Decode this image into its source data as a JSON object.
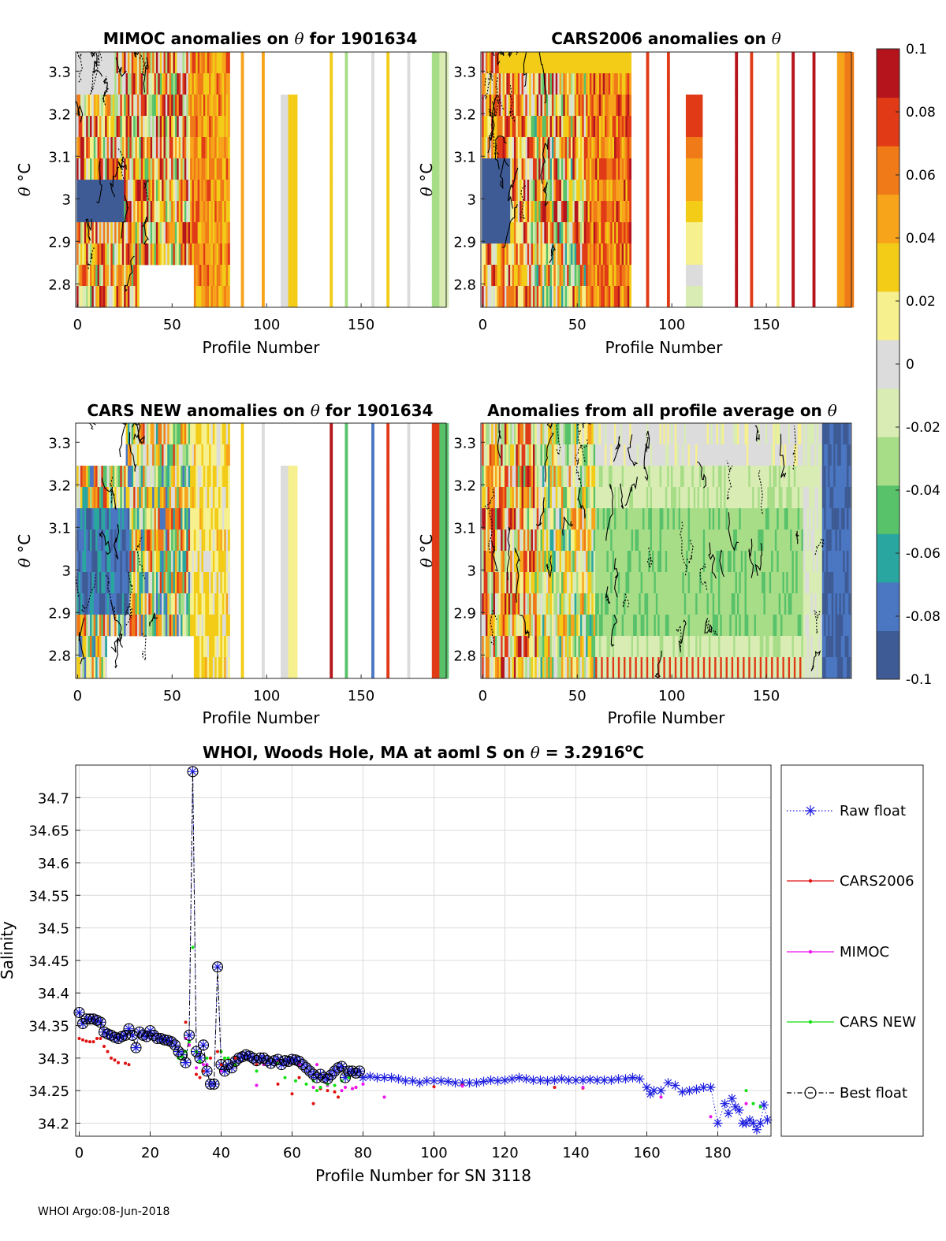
{
  "footer": "WHOI Argo:08-Jun-2018",
  "colorbar": {
    "ticks": [
      0.1,
      0.08,
      0.06,
      0.04,
      0.02,
      0,
      -0.02,
      -0.04,
      -0.06,
      -0.08,
      -0.1
    ],
    "tick_labels": [
      "0.1",
      "0.08",
      "0.06",
      "0.04",
      "0.02",
      "0",
      "-0.02",
      "-0.04",
      "-0.06",
      "-0.08",
      "-0.1"
    ],
    "range": [
      -0.1,
      0.1
    ],
    "colors": [
      "#3e5b95",
      "#4a76c2",
      "#2aa6a0",
      "#57c26a",
      "#a8dd88",
      "#d8ecb4",
      "#dcdcdc",
      "#f6f08e",
      "#f2cc16",
      "#f7a41b",
      "#f07a17",
      "#e03a16",
      "#b5141c"
    ]
  },
  "chart_data": [
    {
      "type": "heatmap",
      "title_text": "MIMOC anomalies on ",
      "title_theta": "θ",
      "title_rest": "  for 1901634",
      "ylabel_theta": "θ",
      "ylabel_unit": "°C",
      "xlabel": "Profile Number",
      "xlim": [
        -1,
        195
      ],
      "ylim": [
        2.745,
        3.345
      ],
      "xticks": [
        0,
        50,
        100,
        150
      ],
      "yticks": [
        2.8,
        2.9,
        3,
        3.1,
        3.2,
        3.3
      ],
      "ytick_labels": [
        "2.8",
        "2.9",
        "3",
        "3.1",
        "3.2",
        "3.3"
      ],
      "pattern": "mimoc"
    },
    {
      "type": "heatmap",
      "title_text": "CARS2006 anomalies on ",
      "title_theta": "θ",
      "title_rest": "",
      "ylabel_theta": "θ",
      "ylabel_unit": "°C",
      "xlabel": "Profile Number",
      "xlim": [
        -1,
        195
      ],
      "ylim": [
        2.745,
        3.345
      ],
      "xticks": [
        0,
        50,
        100,
        150
      ],
      "yticks": [
        2.8,
        2.9,
        3,
        3.1,
        3.2,
        3.3
      ],
      "ytick_labels": [
        "2.8",
        "2.9",
        "3",
        "3.1",
        "3.2",
        "3.3"
      ],
      "pattern": "cars2006"
    },
    {
      "type": "heatmap",
      "title_text": "CARS NEW anomalies on ",
      "title_theta": "θ",
      "title_rest": " for 1901634",
      "ylabel_theta": "θ",
      "ylabel_unit": "°C",
      "xlabel": "Profile Number",
      "xlim": [
        -1,
        195
      ],
      "ylim": [
        2.745,
        3.345
      ],
      "xticks": [
        0,
        50,
        100,
        150
      ],
      "yticks": [
        2.8,
        2.9,
        3,
        3.1,
        3.2,
        3.3
      ],
      "ytick_labels": [
        "2.8",
        "2.9",
        "3",
        "3.1",
        "3.2",
        "3.3"
      ],
      "pattern": "carsnew"
    },
    {
      "type": "heatmap",
      "title_text": "Anomalies from all profile average on ",
      "title_theta": "θ",
      "title_rest": "",
      "ylabel_theta": "θ",
      "ylabel_unit": "°C",
      "xlabel": "Profile Number",
      "xlim": [
        -1,
        195
      ],
      "ylim": [
        2.745,
        3.345
      ],
      "xticks": [
        0,
        50,
        100,
        150
      ],
      "yticks": [
        2.8,
        2.9,
        3,
        3.1,
        3.2,
        3.3
      ],
      "ytick_labels": [
        "2.8",
        "2.9",
        "3",
        "3.1",
        "3.2",
        "3.3"
      ],
      "pattern": "average"
    },
    {
      "type": "line",
      "title_pre": "WHOI, Woods Hole, MA at aoml S on ",
      "title_theta": "θ",
      "title_value": " = 3.2916",
      "title_sup": "o",
      "title_unit": "C",
      "xlabel": "Profile Number for SN 3118",
      "ylabel": "Salinity",
      "xlim": [
        -1,
        195
      ],
      "ylim": [
        34.18,
        34.75
      ],
      "xticks": [
        0,
        20,
        40,
        60,
        80,
        100,
        120,
        140,
        160,
        180
      ],
      "yticks": [
        34.2,
        34.25,
        34.3,
        34.35,
        34.4,
        34.45,
        34.5,
        34.55,
        34.6,
        34.65,
        34.7
      ],
      "ytick_labels": [
        "34.2",
        "34.25",
        "34.3",
        "34.35",
        "34.4",
        "34.45",
        "34.5",
        "34.55",
        "34.6",
        "34.65",
        "34.7"
      ],
      "grid": true,
      "legend_position": "right",
      "series": [
        {
          "name": "Raw float",
          "color": "#1f1fe0",
          "marker": "star",
          "line": "dotted",
          "x": [
            0,
            1,
            2,
            3,
            4,
            5,
            6,
            7,
            8,
            9,
            10,
            11,
            12,
            13,
            14,
            15,
            16,
            17,
            18,
            19,
            20,
            21,
            22,
            23,
            24,
            25,
            26,
            27,
            28,
            29,
            30,
            31,
            32,
            33,
            34,
            35,
            36,
            37,
            38,
            39,
            40,
            41,
            42,
            43,
            44,
            45,
            46,
            47,
            48,
            49,
            50,
            51,
            52,
            53,
            54,
            55,
            56,
            57,
            58,
            59,
            60,
            61,
            62,
            63,
            64,
            65,
            66,
            67,
            68,
            69,
            70,
            71,
            72,
            73,
            74,
            75,
            76,
            77,
            78,
            79,
            80,
            82,
            84,
            86,
            88,
            90,
            92,
            94,
            96,
            98,
            100,
            102,
            104,
            106,
            108,
            110,
            112,
            114,
            116,
            118,
            120,
            122,
            124,
            126,
            128,
            130,
            132,
            134,
            136,
            138,
            140,
            142,
            144,
            146,
            148,
            150,
            152,
            154,
            156,
            158,
            160,
            161,
            162,
            164,
            166,
            168,
            170,
            172,
            174,
            176,
            178,
            180,
            182,
            183,
            184,
            185,
            186,
            187,
            188,
            189,
            190,
            191,
            192,
            193,
            194
          ],
          "y": [
            34.37,
            34.353,
            34.36,
            34.36,
            34.36,
            34.358,
            34.355,
            34.34,
            34.337,
            34.335,
            34.332,
            34.33,
            34.333,
            34.335,
            34.345,
            34.335,
            34.316,
            34.34,
            34.335,
            34.333,
            34.342,
            34.335,
            34.33,
            34.33,
            34.328,
            34.327,
            34.325,
            34.32,
            34.31,
            34.305,
            34.293,
            34.335,
            34.74,
            34.31,
            34.3,
            34.32,
            34.28,
            34.26,
            34.26,
            34.44,
            34.29,
            34.28,
            34.29,
            34.285,
            34.295,
            34.3,
            34.302,
            34.305,
            34.303,
            34.3,
            34.296,
            34.3,
            34.3,
            34.296,
            34.292,
            34.296,
            34.298,
            34.29,
            34.296,
            34.295,
            34.298,
            34.297,
            34.295,
            34.29,
            34.285,
            34.28,
            34.275,
            34.27,
            34.275,
            34.27,
            34.268,
            34.274,
            34.28,
            34.285,
            34.287,
            34.27,
            34.28,
            34.28,
            34.277,
            34.28,
            34.27,
            34.272,
            34.27,
            34.27,
            34.27,
            34.268,
            34.265,
            34.265,
            34.262,
            34.265,
            34.265,
            34.265,
            34.264,
            34.262,
            34.262,
            34.262,
            34.262,
            34.264,
            34.266,
            34.265,
            34.266,
            34.268,
            34.27,
            34.268,
            34.266,
            34.266,
            34.265,
            34.266,
            34.268,
            34.266,
            34.266,
            34.266,
            34.267,
            34.266,
            34.266,
            34.266,
            34.268,
            34.268,
            34.27,
            34.268,
            34.255,
            34.245,
            34.25,
            34.25,
            34.262,
            34.258,
            34.248,
            34.25,
            34.252,
            34.255,
            34.255,
            34.2,
            34.23,
            34.215,
            34.238,
            34.225,
            34.22,
            34.2,
            34.2,
            34.205,
            34.2,
            34.19,
            34.2,
            34.228,
            34.205
          ],
          "show_x": [
            0,
            1,
            2,
            3,
            4,
            5,
            6,
            7,
            8,
            9,
            10,
            11,
            12,
            13,
            14,
            15,
            16,
            17,
            18,
            19,
            20,
            21,
            22,
            23,
            24,
            25,
            26,
            27,
            28,
            29,
            30,
            31,
            32,
            33,
            34,
            35,
            36,
            37,
            38,
            39,
            40,
            41,
            42,
            43,
            44,
            45,
            46,
            47,
            48,
            49,
            50,
            51,
            52,
            53,
            54,
            55,
            56,
            57,
            58,
            59,
            60,
            61,
            62,
            63,
            64,
            65,
            66,
            67,
            68,
            69,
            70,
            71,
            72,
            73,
            74,
            75,
            76,
            77,
            78,
            79,
            80,
            82,
            84,
            86,
            88,
            90,
            92,
            94,
            96,
            98,
            100,
            102,
            104,
            106,
            108,
            110,
            112,
            114,
            116,
            118,
            120,
            122,
            124,
            126,
            128,
            130,
            132,
            134,
            136,
            138,
            140,
            142,
            144,
            146,
            148,
            150,
            152,
            154,
            156,
            158,
            160,
            161,
            162,
            164,
            166,
            168,
            170,
            172,
            174,
            176,
            178,
            180,
            182,
            183,
            184,
            185,
            186,
            187,
            188,
            189,
            190,
            191,
            192,
            193,
            194
          ]
        },
        {
          "name": "CARS2006",
          "color": "#e01010",
          "marker": "dot",
          "line": "solid",
          "x": [
            0,
            1,
            2,
            3,
            4,
            5,
            6,
            7,
            8,
            9,
            10,
            11,
            13,
            14,
            30,
            31,
            33,
            34,
            35,
            37,
            39,
            40,
            44,
            50,
            56,
            60,
            62,
            66,
            68,
            70,
            72,
            73,
            78,
            100,
            108,
            134,
            142
          ],
          "y": [
            34.33,
            34.328,
            34.326,
            34.325,
            34.325,
            34.33,
            34.33,
            34.318,
            34.31,
            34.3,
            34.297,
            34.293,
            34.292,
            34.29,
            34.355,
            34.32,
            34.275,
            34.27,
            34.28,
            34.3,
            34.31,
            34.29,
            34.3,
            34.29,
            34.26,
            34.245,
            34.27,
            34.23,
            34.253,
            34.25,
            34.248,
            34.24,
            34.255,
            34.256,
            34.258,
            34.255,
            34.254
          ]
        },
        {
          "name": "MIMOC",
          "color": "#ee10ee",
          "marker": "dot",
          "line": "solid",
          "x": [
            30,
            31,
            33,
            35,
            36,
            40,
            50,
            52,
            56,
            62,
            66,
            67,
            70,
            74,
            75,
            77,
            78,
            80,
            86,
            108,
            142,
            164,
            178,
            188
          ],
          "y": [
            34.33,
            34.32,
            34.285,
            34.29,
            34.29,
            34.28,
            34.258,
            34.29,
            34.295,
            34.29,
            34.255,
            34.29,
            34.258,
            34.25,
            34.255,
            34.253,
            34.255,
            34.26,
            34.24,
            34.257,
            34.255,
            34.24,
            34.21,
            34.23
          ]
        },
        {
          "name": "CARS NEW",
          "color": "#10e010",
          "marker": "dot",
          "line": "solid",
          "x": [
            28,
            29,
            30,
            31,
            32,
            33,
            34,
            36,
            40,
            41,
            42,
            44,
            50,
            56,
            58,
            61,
            64,
            66,
            67,
            68,
            70,
            72,
            74,
            76,
            188,
            190,
            192
          ],
          "y": [
            34.3,
            34.302,
            34.31,
            34.325,
            34.47,
            34.31,
            34.295,
            34.3,
            34.31,
            34.3,
            34.3,
            34.29,
            34.28,
            34.292,
            34.27,
            34.265,
            34.26,
            34.265,
            34.25,
            34.255,
            34.26,
            34.258,
            34.265,
            34.27,
            34.25,
            34.23,
            34.225
          ]
        },
        {
          "name": "Best float",
          "color": "#000000",
          "marker": "circle",
          "line": "dashdot",
          "x": [
            0,
            1,
            2,
            3,
            4,
            5,
            6,
            7,
            8,
            9,
            10,
            11,
            12,
            13,
            14,
            15,
            16,
            17,
            18,
            19,
            20,
            21,
            22,
            23,
            24,
            25,
            26,
            27,
            28,
            29,
            30,
            31,
            32,
            33,
            34,
            35,
            36,
            37,
            38,
            39,
            40,
            41,
            42,
            43,
            44,
            45,
            46,
            47,
            48,
            49,
            50,
            51,
            52,
            53,
            54,
            55,
            56,
            57,
            58,
            59,
            60,
            61,
            62,
            63,
            64,
            65,
            66,
            67,
            68,
            69,
            70,
            71,
            72,
            73,
            74,
            75,
            76,
            77,
            78,
            79
          ],
          "y": [
            34.37,
            34.353,
            34.36,
            34.36,
            34.36,
            34.358,
            34.355,
            34.34,
            34.337,
            34.335,
            34.332,
            34.33,
            34.333,
            34.335,
            34.345,
            34.335,
            34.316,
            34.34,
            34.335,
            34.333,
            34.342,
            34.335,
            34.33,
            34.33,
            34.328,
            34.327,
            34.325,
            34.32,
            34.31,
            34.305,
            34.293,
            34.335,
            34.74,
            34.31,
            34.3,
            34.32,
            34.28,
            34.26,
            34.26,
            34.44,
            34.29,
            34.28,
            34.29,
            34.285,
            34.295,
            34.3,
            34.302,
            34.305,
            34.303,
            34.3,
            34.296,
            34.3,
            34.3,
            34.296,
            34.292,
            34.296,
            34.298,
            34.29,
            34.296,
            34.295,
            34.298,
            34.297,
            34.295,
            34.29,
            34.285,
            34.28,
            34.275,
            34.27,
            34.275,
            34.27,
            34.268,
            34.274,
            34.28,
            34.285,
            34.287,
            34.27,
            34.28,
            34.28,
            34.277,
            34.28
          ]
        }
      ]
    }
  ]
}
